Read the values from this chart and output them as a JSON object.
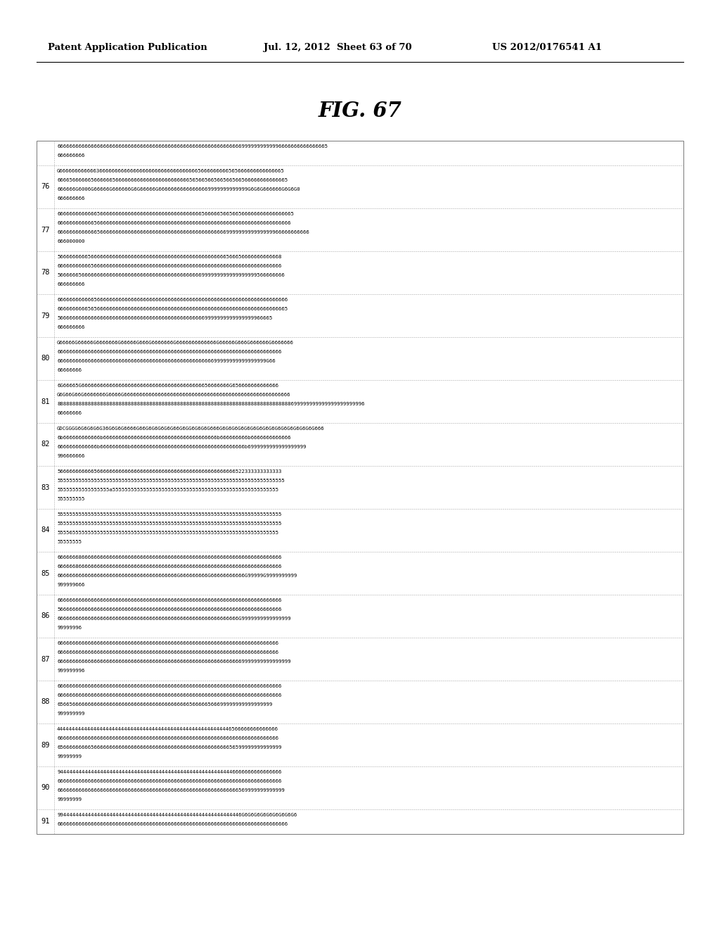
{
  "header_left": "Patent Application Publication",
  "header_mid": "Jul. 12, 2012  Sheet 63 of 70",
  "header_right": "US 2012/0176541 A1",
  "fig_title": "FIG. 67",
  "background_color": "#ffffff",
  "table_rows": [
    {
      "row_num": "",
      "lines": [
        "6666666666666666666666666666666666666666666666666666666666669999999999996666666666666665",
        "666666666"
      ]
    },
    {
      "row_num": "76",
      "lines": [
        "G6666666666663666666666666666666666666666666665666666666565666666666666665",
        "666656666665666666566666666666666666666666656566566566566566566666666666665",
        "666666G6006G66666G666666G6G66666G66666666666666669999999999999G6G6G666666G6G6G0",
        "666666666"
      ]
    },
    {
      "row_num": "77",
      "lines": [
        "66666666666665666666666666666666666666666666666566666566566566666666666666665",
        "6666666666665666666666666666666666666666666666666666666666666666666666666666",
        "6666666666666566666666666666666666666666666666666666666999999999999999966666666666",
        "666000000"
      ]
    },
    {
      "row_num": "78",
      "lines": [
        "5666666666566666666666666666666666666666666666666666666566656666666666668",
        "6666666666656666666666666666666666666666666666666666666666666666666666666",
        "56666665666666666666666666666666666666666666666999999999999999999566666666",
        "666666666"
      ]
    },
    {
      "row_num": "79",
      "lines": [
        "666666666666566666666666666666666666666666666666666666666666666666666666666",
        "666666666656566666666666666666666666666666666666666666666666666666666666665",
        "5666666666666666666666666666666666666666666666669999999999999999966665",
        "666666666"
      ]
    },
    {
      "row_num": "80",
      "lines": [
        "G66666G66666G6666666G66666G666G6666666G6666666666666G66666G666G666666G6666666",
        "6666666666666666666666666666666666666666666666666666666666666666666666666",
        "66666666666666666666666666666666666666666666666666699999999999999999G66",
        "66666666"
      ]
    },
    {
      "row_num": "81",
      "lines": [
        "6G66665G666666666666666666666666666666666666666656666666G656666666666666",
        "G6G66G66G6666666G6666G666666666666666666666666666666666666666666666666666666",
        "8888888888888888888888888888888888888888888888888888888888888888888888888888699999999999999999999996",
        "66666666"
      ]
    },
    {
      "row_num": "82",
      "lines": [
        "GDCGGGG6G6G6G6G36G6G6G6666G66G6G6G6G6G66G6GG6G6G6G666G6G6G6G6G6G6G6G6G6G6G6G6G6G6G6G666",
        "6b666666666666b6666666666666666666666666666666666666b666666666b6666666666666",
        "6666666666666b666666666b6666666666666666666666666666666666666b6999999999999999999",
        "996666666"
      ]
    },
    {
      "row_num": "83",
      "lines": [
        "5666666666665666666666666666666666666666666666666666666666522333333333333",
        "55555555555555555555555555555555555555555555555555555555555555555555555555",
        "55555555555555555a555555555555555555555555555555555555555555555555555555",
        "555555555"
      ]
    },
    {
      "row_num": "84",
      "lines": [
        "5555555555555555555555555555555555555555555555555555555555555555555555555",
        "5555555555555555555555555555555555555555555555555555555555555555555555555",
        "555565555555555555555555555555555555555555555555555555555555555555555555",
        "55555555"
      ]
    },
    {
      "row_num": "85",
      "lines": [
        "6666666866666666666666666666666666666666666666666666666666666666666666666",
        "6666668666666666666666666666666666666666666666666666666666666666666666666",
        "666666666666666666666666666666666666666G666666666G66666666666G99999G9999999999",
        "999999666"
      ]
    },
    {
      "row_num": "86",
      "lines": [
        "6666666666666666666666666666666666666666666666666666666666666666666666666",
        "5666666666666666666666666666666666666666666666666666666666666666666666666",
        "66666666666666666666666666666666666666666666666666666666666G9999999999999999",
        "99999996"
      ]
    },
    {
      "row_num": "87",
      "lines": [
        "666666666666666666666666666666666666666666666666666666666666666666666666",
        "666666666666666666666666666666666666666666666666666666666666666666666666",
        "6666666666666666666666666666666666666666666666666666666666669999999999999999",
        "999999996"
      ]
    },
    {
      "row_num": "88",
      "lines": [
        "6666666666666666666666666666666666666666666666666666666666666666666666666",
        "6666666666666666666666666666666666666666666666666666666666666666666666666",
        "6566566666666666666666666666666666666666666566666566699999999999999999",
        "999999999"
      ]
    },
    {
      "row_num": "89",
      "lines": [
        "444444444444444444444444444444444444444444444444444444446566666666666666",
        "666666666666666666666666666666666666666666666666666666666666666666666666",
        "6566666666656666666666666666666666666666666666666666666656599999999999999",
        "99999999"
      ]
    },
    {
      "row_num": "90",
      "lines": [
        "9444444444444444444444444444444444444444444444444444444446666666666666666",
        "6666666666666666666666666666666666666666666666666666666666666666666666666",
        "66666666666666666666666666666666666666666666666666666666666569999999999999",
        "99999999"
      ]
    },
    {
      "row_num": "91",
      "lines": [
        "994444444444444444444444444444444444444444444444444444444446G6G6G6G6G6G6G6G6G6",
        "666666666666666666666666666666666666666666666666666666666666666666666666666"
      ]
    }
  ]
}
